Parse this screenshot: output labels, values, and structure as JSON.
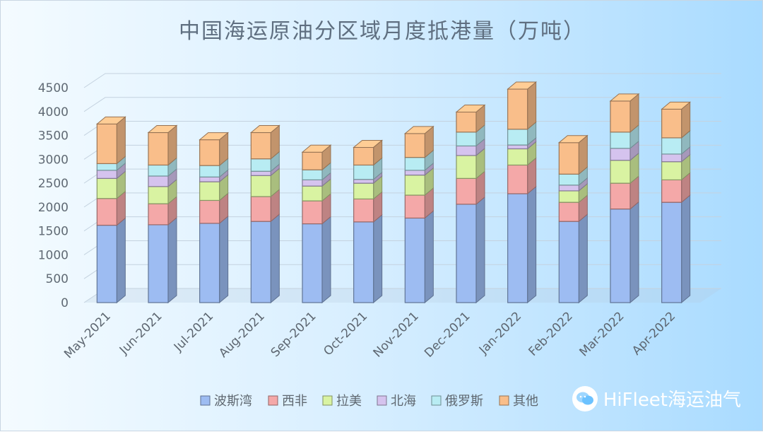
{
  "chart_data": {
    "type": "bar",
    "stacked": true,
    "title": "中国海运原油分区域月度抵港量（万吨）",
    "categories": [
      "May-2021",
      "Jun-2021",
      "Jul-2021",
      "Aug-2021",
      "Sep-2021",
      "Oct-2021",
      "Nov-2021",
      "Dec-2021",
      "Jan-2022",
      "Feb-2022",
      "Mar-2022",
      "Apr-2022"
    ],
    "series": [
      {
        "name": "波斯湾",
        "color": "#9dbcf2",
        "values": [
          1620,
          1630,
          1660,
          1700,
          1650,
          1690,
          1770,
          2060,
          2280,
          1700,
          1960,
          2100
        ]
      },
      {
        "name": "西非",
        "color": "#f4a8a8",
        "values": [
          560,
          440,
          480,
          520,
          480,
          480,
          480,
          540,
          600,
          400,
          540,
          470
        ]
      },
      {
        "name": "拉美",
        "color": "#d9f3a2",
        "values": [
          420,
          360,
          390,
          440,
          310,
          330,
          420,
          480,
          340,
          240,
          480,
          380
        ]
      },
      {
        "name": "北海",
        "color": "#d5c3ee",
        "values": [
          170,
          220,
          100,
          90,
          130,
          80,
          100,
          200,
          80,
          120,
          250,
          160
        ]
      },
      {
        "name": "俄罗斯",
        "color": "#b8ecf3",
        "values": [
          140,
          230,
          240,
          260,
          210,
          300,
          270,
          290,
          330,
          230,
          340,
          340
        ]
      },
      {
        "name": "其他",
        "color": "#f9be8a",
        "values": [
          830,
          680,
          540,
          550,
          370,
          370,
          500,
          420,
          840,
          660,
          650,
          600
        ]
      }
    ],
    "yticks": [
      0,
      500,
      1000,
      1500,
      2000,
      2500,
      3000,
      3500,
      4000,
      4500
    ],
    "ylim": [
      0,
      4500
    ],
    "legend_position": "bottom",
    "grid": true
  },
  "watermark": {
    "text": "HiFleet海运油气",
    "icon": "wechat-icon"
  }
}
